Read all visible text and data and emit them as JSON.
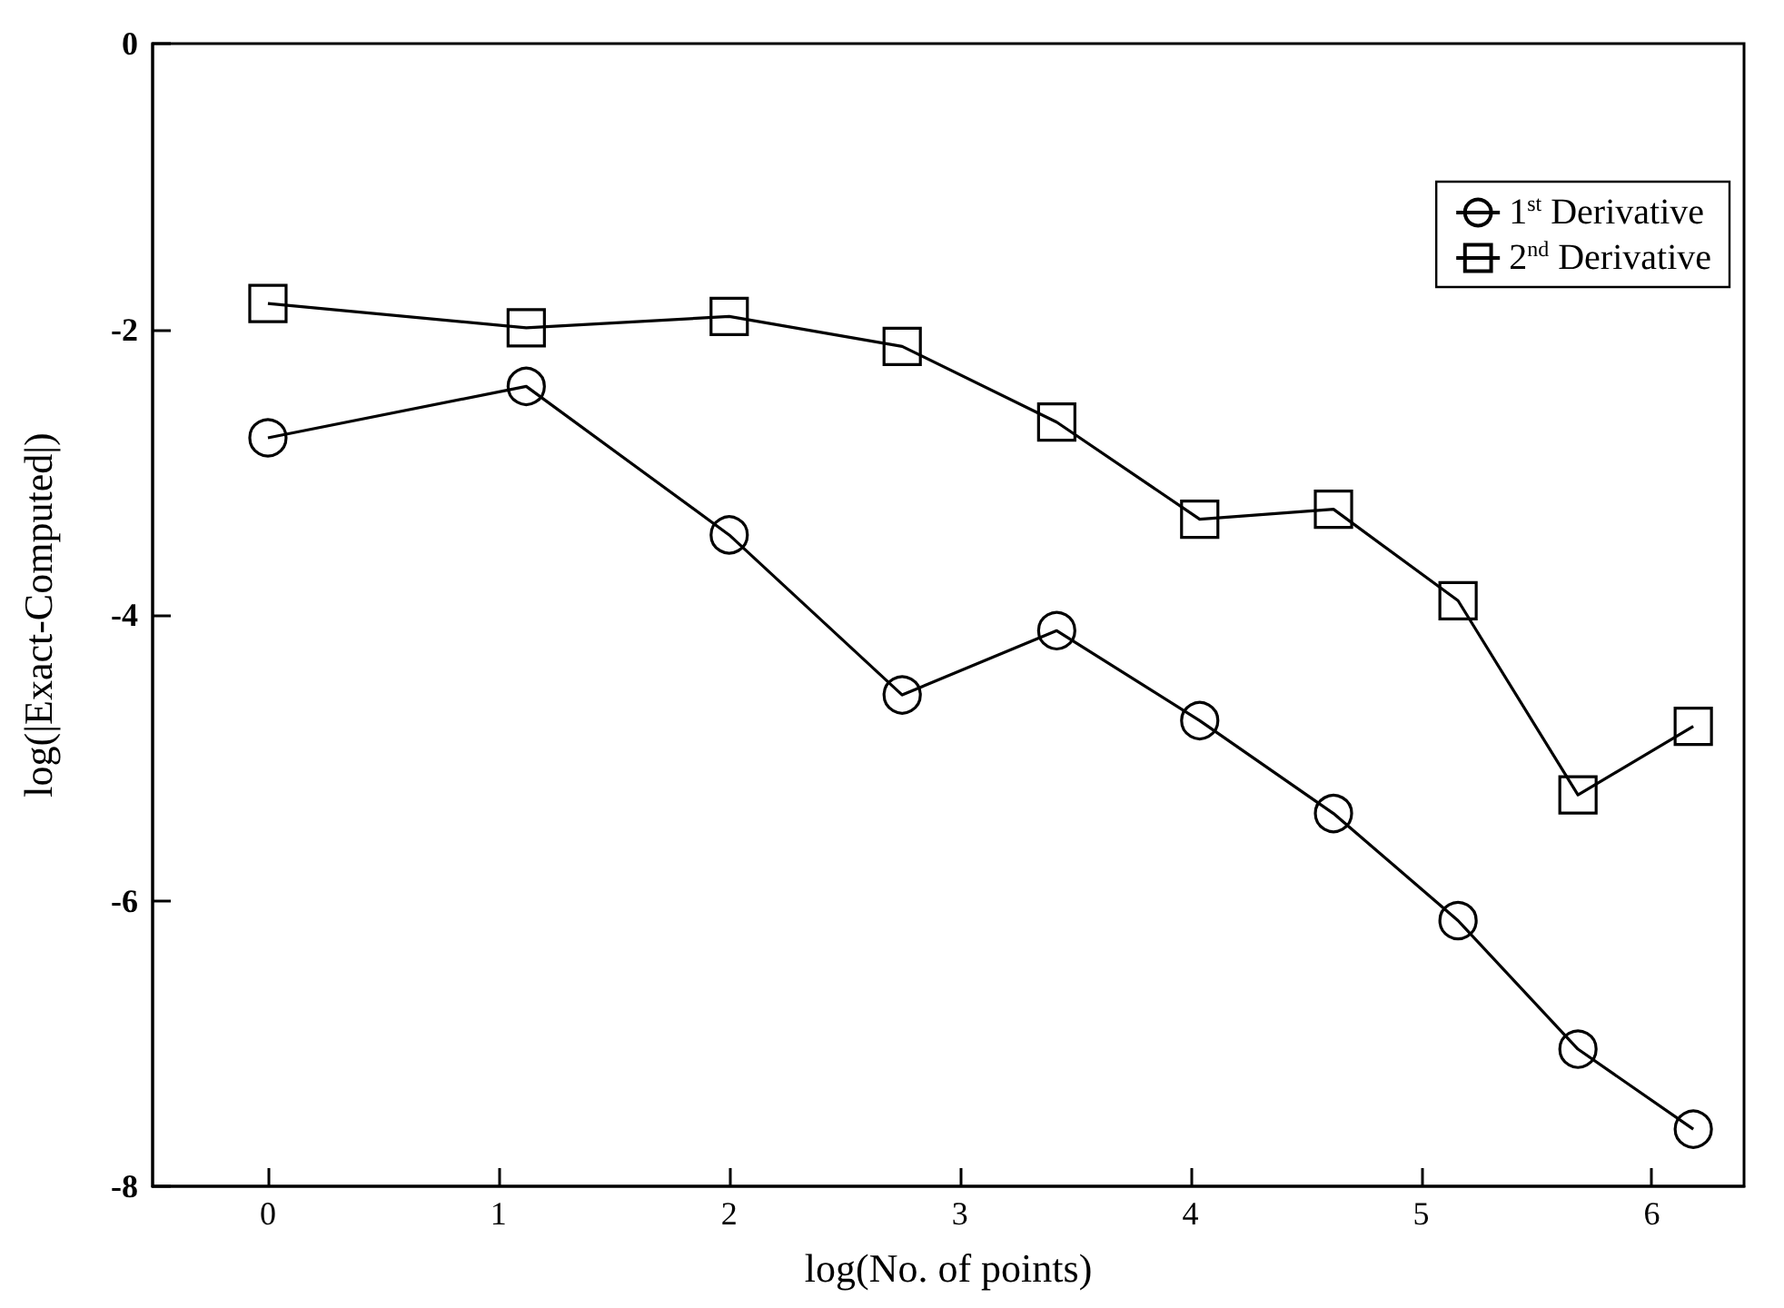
{
  "chart_data": {
    "type": "line",
    "xlabel": "log(No. of points)",
    "ylabel": "log(|Exact-Computed|)",
    "x": [
      0,
      1.12,
      2.0,
      2.75,
      3.42,
      4.04,
      4.62,
      5.16,
      5.68,
      6.18
    ],
    "series": [
      {
        "name": "1$^{st}$ Derivative",
        "color": "#000000",
        "marker": "circle",
        "values": [
          -2.76,
          -2.4,
          -3.44,
          -4.56,
          -4.11,
          -4.74,
          -5.39,
          -6.14,
          -7.04,
          -7.6
        ]
      },
      {
        "name": "2$^{nd}$ Derivative",
        "color": "#000000",
        "marker": "square",
        "values": [
          -1.82,
          -1.99,
          -1.91,
          -2.12,
          -2.65,
          -3.33,
          -3.26,
          -3.9,
          -5.26,
          -4.78
        ]
      }
    ],
    "xlim": [
      -0.5,
      6.4
    ],
    "xticks": [
      0,
      1,
      2,
      3,
      4,
      5,
      6
    ],
    "ylim": [
      -8,
      0
    ],
    "yticks": [
      -8,
      -6,
      -4,
      -2,
      0
    ],
    "grid": false,
    "legend": "top right",
    "line_style": "solid"
  }
}
